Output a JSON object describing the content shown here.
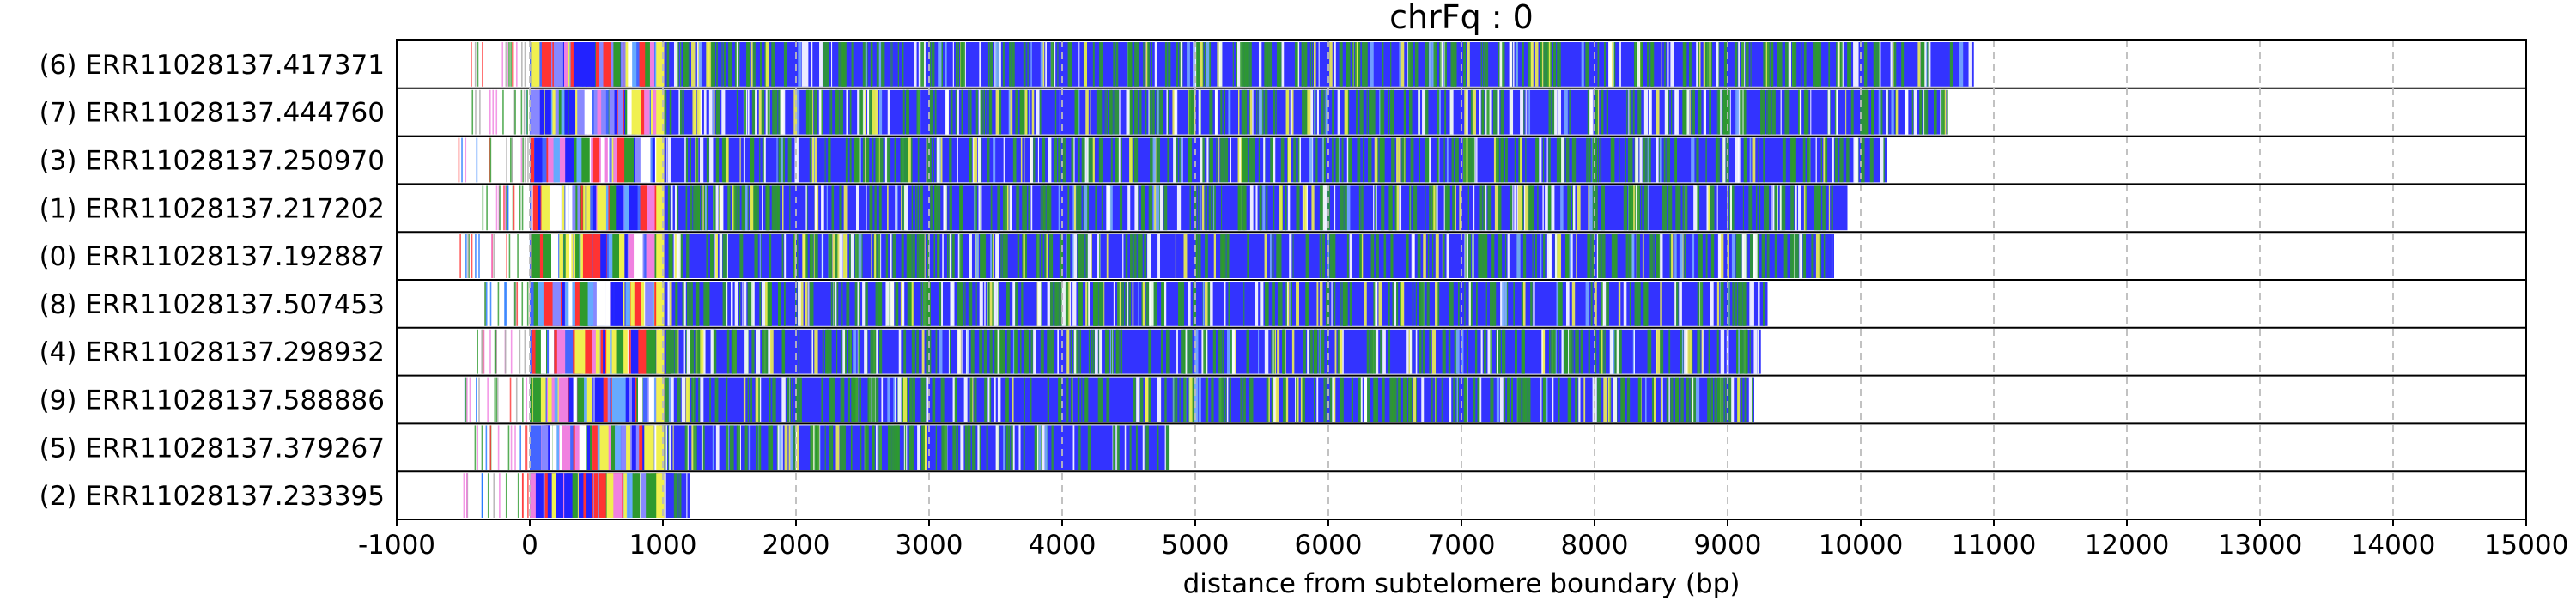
{
  "chart_data": {
    "type": "bar",
    "orientation": "horizontal",
    "title": "chrFq : 0",
    "xlabel": "distance from subtelomere boundary (bp)",
    "ylabel": "",
    "xlim": [
      -1000,
      15000
    ],
    "xticks": [
      -1000,
      0,
      1000,
      2000,
      3000,
      4000,
      5000,
      6000,
      7000,
      8000,
      9000,
      10000,
      11000,
      12000,
      13000,
      14000,
      15000
    ],
    "grid": "vertical dashed",
    "categories": [
      "(6) ERR11028137.417371",
      "(7) ERR11028137.444760",
      "(3) ERR11028137.250970",
      "(1) ERR11028137.217202",
      "(0) ERR11028137.192887",
      "(8) ERR11028137.507453",
      "(4) ERR11028137.298932",
      "(9) ERR11028137.588886",
      "(5) ERR11028137.379267",
      "(2) ERR11028137.233395"
    ],
    "reads": [
      {
        "label": "(6) ERR11028137.417371",
        "start": -500,
        "end": 10850
      },
      {
        "label": "(7) ERR11028137.444760",
        "start": -450,
        "end": 10650
      },
      {
        "label": "(3) ERR11028137.250970",
        "start": -600,
        "end": 10200
      },
      {
        "label": "(1) ERR11028137.217202",
        "start": -400,
        "end": 9900
      },
      {
        "label": "(0) ERR11028137.192887",
        "start": -600,
        "end": 9800
      },
      {
        "label": "(8) ERR11028137.507453",
        "start": -350,
        "end": 9300
      },
      {
        "label": "(4) ERR11028137.298932",
        "start": -450,
        "end": 9250
      },
      {
        "label": "(9) ERR11028137.588886",
        "start": -500,
        "end": 9200
      },
      {
        "label": "(5) ERR11028137.379267",
        "start": -500,
        "end": 4800
      },
      {
        "label": "(2) ERR11028137.233395",
        "start": -500,
        "end": 1200
      }
    ],
    "colors": {
      "main": "#3333ff",
      "green": "#2e9a2e",
      "yellow": "#f0f050",
      "pink": "#f080e0",
      "red": "#ff3333",
      "white": "#ffffff",
      "grid": "#bbbbbb"
    }
  }
}
